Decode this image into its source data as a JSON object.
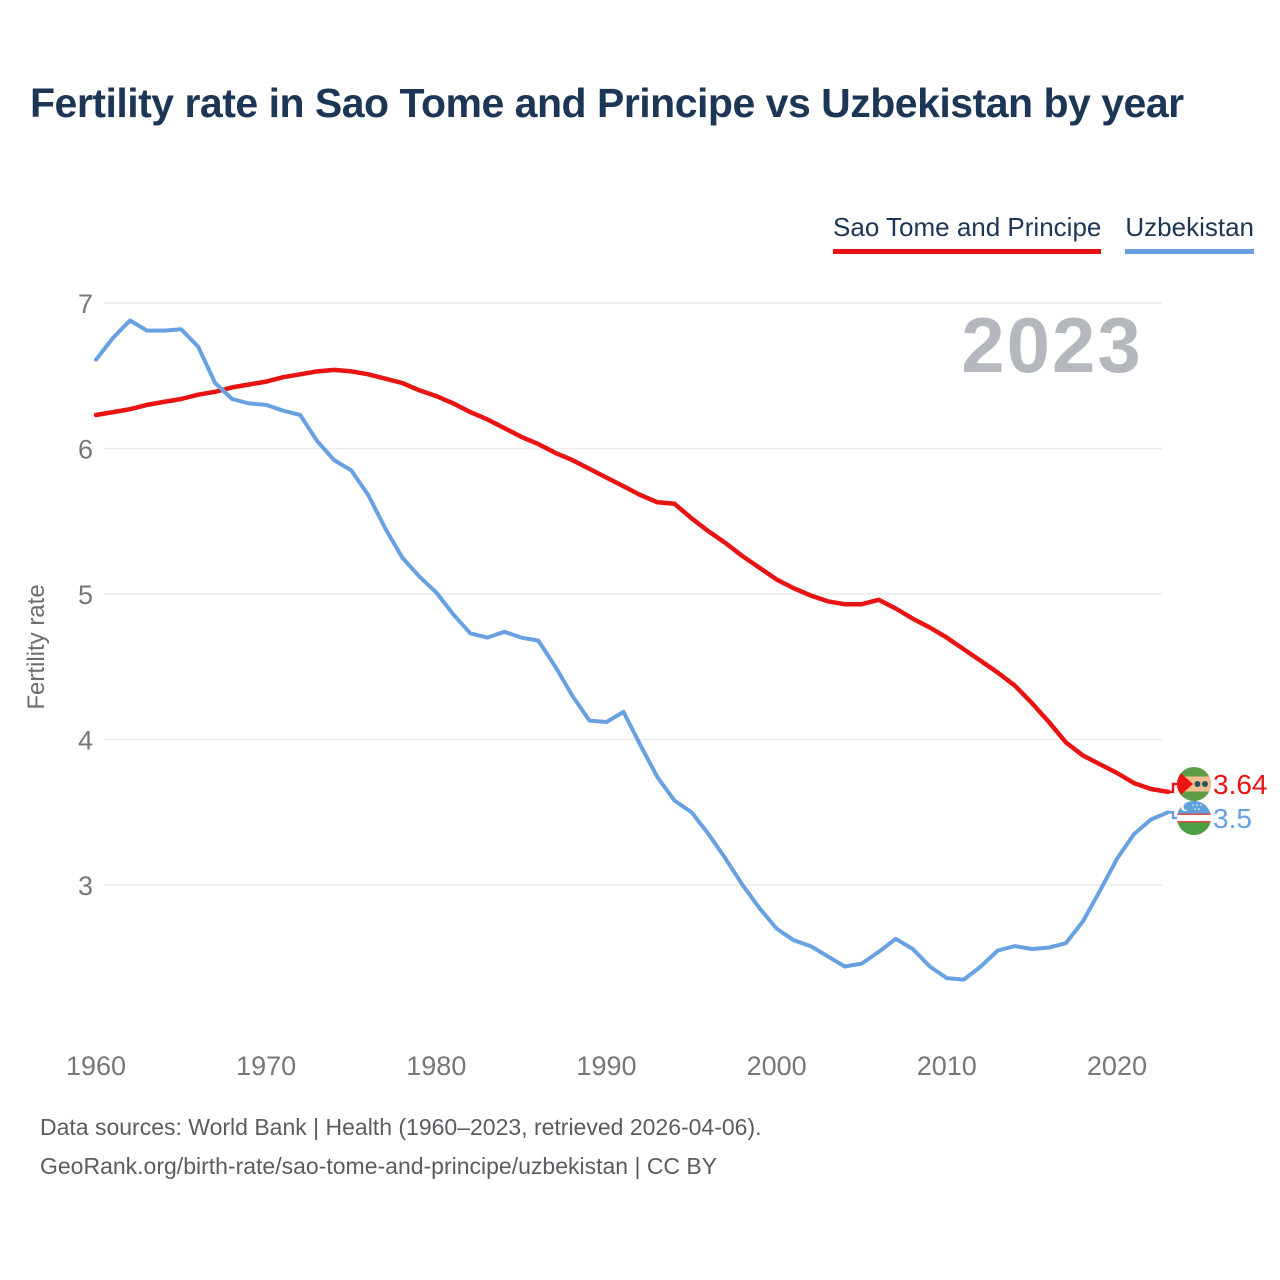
{
  "title": "Fertility rate in Sao Tome and Principe vs Uzbekistan by year",
  "watermark": "2023",
  "legend": [
    {
      "label": "Sao Tome and Principe",
      "color": "#e81313"
    },
    {
      "label": "Uzbekistan",
      "color": "#68a1e2"
    }
  ],
  "y_axis_title": "Fertility rate",
  "end_labels": [
    {
      "series": "Sao Tome and Principe",
      "value": "3.64",
      "flag": "sao-tome-and-principe-flag"
    },
    {
      "series": "Uzbekistan",
      "value": "3.5",
      "flag": "uzbekistan-flag"
    }
  ],
  "footer": {
    "line1": "Data sources: World Bank | Health (1960–2023, retrieved 2026-04-06).",
    "line2": "GeoRank.org/birth-rate/sao-tome-and-principe/uzbekistan | CC BY"
  },
  "colors": {
    "title_text": "#1d3656",
    "axis_text": "#75777b",
    "gridline": "#eaeaea",
    "watermark": "#b4b8be",
    "sao_tome_line": "#e81313",
    "uzbekistan_line": "#68a1e2",
    "footer_text": "#595d61"
  },
  "chart_data": {
    "type": "line",
    "title": "Fertility rate in Sao Tome and Principe vs Uzbekistan by year",
    "ylabel": "Fertility rate",
    "xlabel": "",
    "x_start": 1960,
    "x_end": 2023,
    "x_step": 1,
    "xticks": [
      1960,
      1970,
      1980,
      1990,
      2000,
      2010,
      2020
    ],
    "yticks": [
      3,
      4,
      5,
      6,
      7
    ],
    "ylim": [
      2.1,
      7.1
    ],
    "grid": "horizontal-only",
    "legend_position": "top-right",
    "annotation_year": "2023",
    "series": [
      {
        "name": "Sao Tome and Principe",
        "color": "#e81313",
        "end_label": "3.64",
        "values": [
          6.23,
          6.25,
          6.27,
          6.3,
          6.32,
          6.34,
          6.37,
          6.39,
          6.42,
          6.44,
          6.46,
          6.49,
          6.51,
          6.53,
          6.54,
          6.53,
          6.51,
          6.48,
          6.45,
          6.4,
          6.36,
          6.31,
          6.25,
          6.2,
          6.14,
          6.08,
          6.03,
          5.97,
          5.92,
          5.86,
          5.8,
          5.74,
          5.68,
          5.63,
          5.62,
          5.52,
          5.43,
          5.35,
          5.26,
          5.18,
          5.1,
          5.04,
          4.99,
          4.95,
          4.93,
          4.93,
          4.96,
          4.9,
          4.83,
          4.77,
          4.7,
          4.62,
          4.54,
          4.46,
          4.37,
          4.25,
          4.12,
          3.98,
          3.89,
          3.83,
          3.77,
          3.7,
          3.66,
          3.64
        ]
      },
      {
        "name": "Uzbekistan",
        "color": "#68a1e2",
        "end_label": "3.5",
        "values": [
          6.61,
          6.76,
          6.88,
          6.81,
          6.81,
          6.82,
          6.7,
          6.45,
          6.34,
          6.31,
          6.3,
          6.26,
          6.23,
          6.05,
          5.92,
          5.85,
          5.68,
          5.45,
          5.25,
          5.12,
          5.01,
          4.86,
          4.73,
          4.7,
          4.74,
          4.7,
          4.68,
          4.5,
          4.3,
          4.13,
          4.12,
          4.19,
          3.96,
          3.74,
          3.58,
          3.5,
          3.35,
          3.18,
          3.0,
          2.84,
          2.7,
          2.62,
          2.58,
          2.51,
          2.44,
          2.46,
          2.54,
          2.63,
          2.56,
          2.44,
          2.36,
          2.35,
          2.44,
          2.55,
          2.58,
          2.56,
          2.57,
          2.6,
          2.75,
          2.96,
          3.18,
          3.35,
          3.45,
          3.5
        ]
      }
    ]
  }
}
